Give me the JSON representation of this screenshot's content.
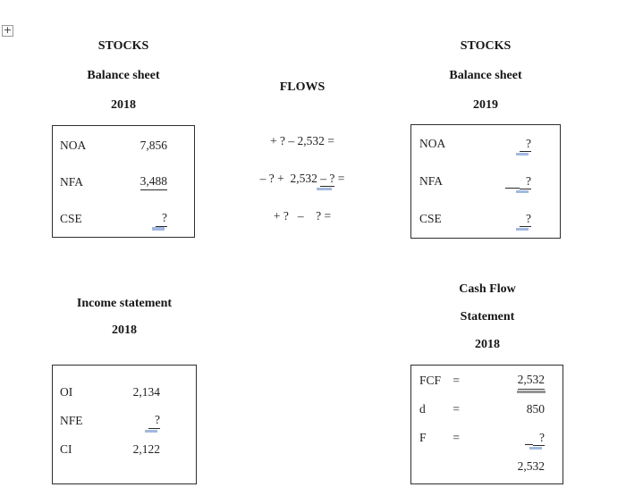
{
  "accent": {
    "blank_blue": "#a2b9de",
    "text_color": "#1f1f1f",
    "border_color": "#2e2e2e",
    "double_gray": "#949494"
  },
  "anchor": {
    "icon": "+"
  },
  "bs2018": {
    "title_line1": "STOCKS",
    "title_line2": "Balance sheet",
    "title_line3": "2018",
    "rows": [
      {
        "label": "NOA",
        "value": "7,856"
      },
      {
        "label": "NFA",
        "value": "3,488"
      },
      {
        "label": "CSE",
        "value": "  ?"
      }
    ]
  },
  "flows": {
    "title": "FLOWS",
    "row1": "+ ? – 2,532 =",
    "row2_prefix": "– ? +  2,532 ",
    "row2_blank": "– ?",
    "row2_suffix": " =",
    "row3": "+ ?   –    ? ="
  },
  "bs2019": {
    "title_line1": "STOCKS",
    "title_line2": "Balance sheet",
    "title_line3": "2019",
    "rows": [
      {
        "label": "NOA",
        "value": "  ?"
      },
      {
        "label": "NFA",
        "value": "  ?"
      },
      {
        "label": "CSE",
        "value": "  ?"
      }
    ]
  },
  "income2018": {
    "title_line1": "Income statement",
    "title_line2": "2018",
    "rows": [
      {
        "label": "OI",
        "value": "2,134"
      },
      {
        "label": "NFE",
        "value": "  ?"
      },
      {
        "label": "CI",
        "value": "2,122"
      }
    ]
  },
  "cashflow2018": {
    "title_line1": "Cash Flow",
    "title_line2": "Statement",
    "title_line3": "2018",
    "rows": [
      {
        "label": "FCF",
        "eq": "=",
        "value": "2,532"
      },
      {
        "label": "d",
        "eq": "=",
        "value": "850"
      },
      {
        "label": "F",
        "eq": "=",
        "value": "  ?"
      },
      {
        "label": "",
        "eq": "",
        "value": "2,532"
      }
    ]
  }
}
